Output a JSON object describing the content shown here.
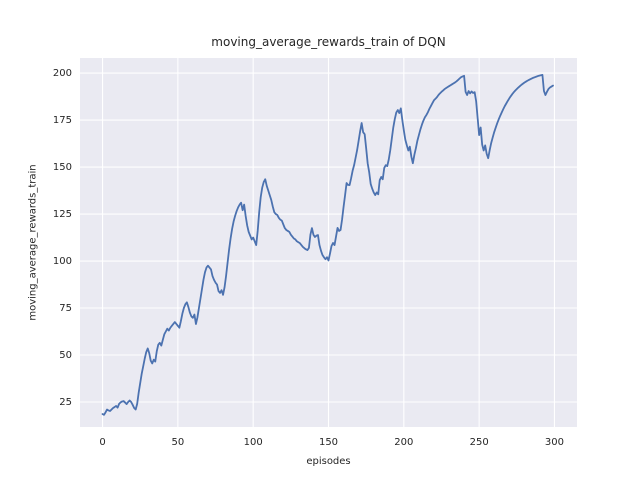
{
  "style": {
    "figure_bg": "#ffffff",
    "axes_bg": "#eaeaf2",
    "grid_color": "#ffffff",
    "text_color": "#262626",
    "line_color": "#4c72b0"
  },
  "chart_data": {
    "type": "line",
    "title": "moving_average_rewards_train of DQN",
    "xlabel": "episodes",
    "ylabel": "moving_average_rewards_train",
    "x_ticks": [
      0,
      50,
      100,
      150,
      200,
      250,
      300
    ],
    "y_ticks": [
      25,
      50,
      75,
      100,
      125,
      150,
      175,
      200
    ],
    "xlim": [
      -14.95,
      314.95
    ],
    "ylim": [
      11.7,
      208
    ],
    "grid": true,
    "legend_position": "none",
    "series": [
      {
        "name": "moving_average_rewards_train",
        "color": "#4c72b0",
        "x_start": 0,
        "x_step": 1,
        "values": [
          18.6,
          18.2,
          19.5,
          21.0,
          20.5,
          20.2,
          21.0,
          21.8,
          22.3,
          22.9,
          22.0,
          24.0,
          24.8,
          25.3,
          25.5,
          24.7,
          23.9,
          25.0,
          25.8,
          25.0,
          23.5,
          21.8,
          21.0,
          24.0,
          30.0,
          35.0,
          40.0,
          44.0,
          48.0,
          51.5,
          53.5,
          51.0,
          47.0,
          45.5,
          47.5,
          46.5,
          52.0,
          55.5,
          56.5,
          55.0,
          58.0,
          61.0,
          62.5,
          64.0,
          63.0,
          64.5,
          65.5,
          66.5,
          67.5,
          66.5,
          65.5,
          64.5,
          68.0,
          72.0,
          75.0,
          77.0,
          78.0,
          75.5,
          72.5,
          70.5,
          69.8,
          71.5,
          66.5,
          70.0,
          75.0,
          80.0,
          85.0,
          90.0,
          94.0,
          96.5,
          97.5,
          96.5,
          95.5,
          92.0,
          90.0,
          88.5,
          87.5,
          84.0,
          83.0,
          84.5,
          82.0,
          86.0,
          92.0,
          99.0,
          106.0,
          112.0,
          117.0,
          121.0,
          124.0,
          126.5,
          128.5,
          130.0,
          131.0,
          127.0,
          130.0,
          124.0,
          119.0,
          115.5,
          113.5,
          111.5,
          112.5,
          110.5,
          108.5,
          116.0,
          126.0,
          134.0,
          139.0,
          142.0,
          143.5,
          140.0,
          137.5,
          135.0,
          132.5,
          129.0,
          126.0,
          125.0,
          124.5,
          123.0,
          122.0,
          121.5,
          119.5,
          117.5,
          116.5,
          116.0,
          115.5,
          114.0,
          113.0,
          112.0,
          111.5,
          110.5,
          110.0,
          109.5,
          108.5,
          107.5,
          106.8,
          106.2,
          105.8,
          107.0,
          114.0,
          117.5,
          114.0,
          112.8,
          113.5,
          113.8,
          108.5,
          105.5,
          103.2,
          102.0,
          101.0,
          102.0,
          100.3,
          104.0,
          108.0,
          109.6,
          108.5,
          113.0,
          117.6,
          116.0,
          116.5,
          122.0,
          128.8,
          135.0,
          141.5,
          140.5,
          140.4,
          144.0,
          148.0,
          151.0,
          155.0,
          159.0,
          164.0,
          169.0,
          173.4,
          168.5,
          167.5,
          160.0,
          152.0,
          147.3,
          141.0,
          138.5,
          136.5,
          135.1,
          136.5,
          135.5,
          143.0,
          144.7,
          143.5,
          149.5,
          151.0,
          150.5,
          154.0,
          159.0,
          165.0,
          171.0,
          175.5,
          179.0,
          180.3,
          178.7,
          181.2,
          175.0,
          169.5,
          164.5,
          161.5,
          158.8,
          160.8,
          155.5,
          152.0,
          156.5,
          160.0,
          164.0,
          167.0,
          170.0,
          172.5,
          174.7,
          176.5,
          177.7,
          179.2,
          181.0,
          182.5,
          184.0,
          185.5,
          186.3,
          187.2,
          188.3,
          189.2,
          190.0,
          190.7,
          191.4,
          192.0,
          192.5,
          193.0,
          193.5,
          194.0,
          194.5,
          195.0,
          195.6,
          196.3,
          197.1,
          197.8,
          198.2,
          198.5,
          190.0,
          188.3,
          190.4,
          189.2,
          190.2,
          189.4,
          189.8,
          185.0,
          176.0,
          167.0,
          171.0,
          162.0,
          158.8,
          161.5,
          157.0,
          154.7,
          159.0,
          162.8,
          165.8,
          168.6,
          171.0,
          173.3,
          175.4,
          177.3,
          179.1,
          180.8,
          182.4,
          183.8,
          185.2,
          186.5,
          187.7,
          188.8,
          189.8,
          190.7,
          191.5,
          192.3,
          193.0,
          193.7,
          194.3,
          194.9,
          195.4,
          195.9,
          196.3,
          196.7,
          197.1,
          197.5,
          197.8,
          198.1,
          198.4,
          198.6,
          198.8,
          199.0,
          190.5,
          188.3,
          190.0,
          191.5,
          192.3,
          192.8,
          193.3
        ]
      }
    ]
  }
}
